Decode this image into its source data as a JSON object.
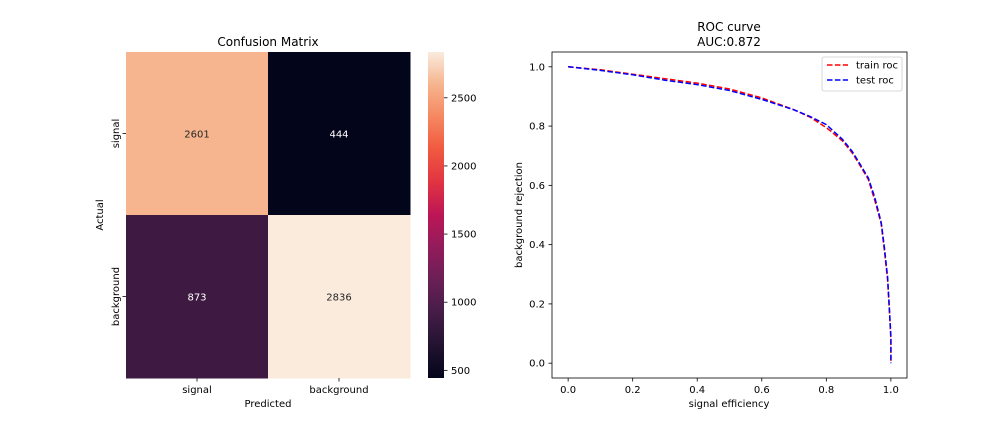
{
  "chart_data": [
    {
      "type": "heatmap",
      "title": "Confusion Matrix",
      "xlabel": "Predicted",
      "ylabel": "Actual",
      "x_categories": [
        "signal",
        "background"
      ],
      "y_categories": [
        "signal",
        "background"
      ],
      "values": [
        [
          2601,
          444
        ],
        [
          873,
          2836
        ]
      ],
      "colormap": "rocket",
      "colorbar": {
        "vmin": 444,
        "vmax": 2836,
        "ticks": [
          500,
          1000,
          1500,
          2000,
          2500
        ]
      },
      "annotation_color_light": "#ffffff",
      "annotation_color_dark": "#262626"
    },
    {
      "type": "line",
      "title": "ROC curve",
      "subtitle": "AUC:0.872",
      "xlabel": "signal efficiency",
      "ylabel": "background rejection",
      "xlim": [
        -0.05,
        1.05
      ],
      "ylim": [
        -0.05,
        1.05
      ],
      "xticks": [
        0.0,
        0.2,
        0.4,
        0.6,
        0.8,
        1.0
      ],
      "yticks": [
        0.0,
        0.2,
        0.4,
        0.6,
        0.8,
        1.0
      ],
      "tick_labels": [
        "0.0",
        "0.2",
        "0.4",
        "0.6",
        "0.8",
        "1.0"
      ],
      "grid": false,
      "legend_position": "top-right",
      "series": [
        {
          "name": "train roc",
          "color": "#ff0000",
          "linestyle": "dashed",
          "x": [
            0.0,
            0.1,
            0.2,
            0.3,
            0.4,
            0.5,
            0.6,
            0.7,
            0.75,
            0.8,
            0.85,
            0.88,
            0.9,
            0.93,
            0.95,
            0.97,
            0.98,
            0.99,
            0.995,
            1.0,
            1.0
          ],
          "y": [
            1.0,
            0.99,
            0.975,
            0.96,
            0.945,
            0.925,
            0.895,
            0.855,
            0.83,
            0.795,
            0.75,
            0.71,
            0.675,
            0.62,
            0.55,
            0.47,
            0.38,
            0.28,
            0.18,
            0.08,
            0.0
          ]
        },
        {
          "name": "test roc",
          "color": "#0000ff",
          "linestyle": "dashed",
          "x": [
            0.0,
            0.1,
            0.2,
            0.3,
            0.4,
            0.5,
            0.6,
            0.7,
            0.75,
            0.8,
            0.85,
            0.88,
            0.9,
            0.93,
            0.95,
            0.97,
            0.98,
            0.99,
            0.995,
            1.0,
            1.0
          ],
          "y": [
            1.0,
            0.988,
            0.973,
            0.955,
            0.94,
            0.92,
            0.89,
            0.855,
            0.832,
            0.805,
            0.755,
            0.715,
            0.68,
            0.625,
            0.56,
            0.475,
            0.39,
            0.29,
            0.19,
            0.09,
            0.0
          ]
        }
      ]
    }
  ]
}
